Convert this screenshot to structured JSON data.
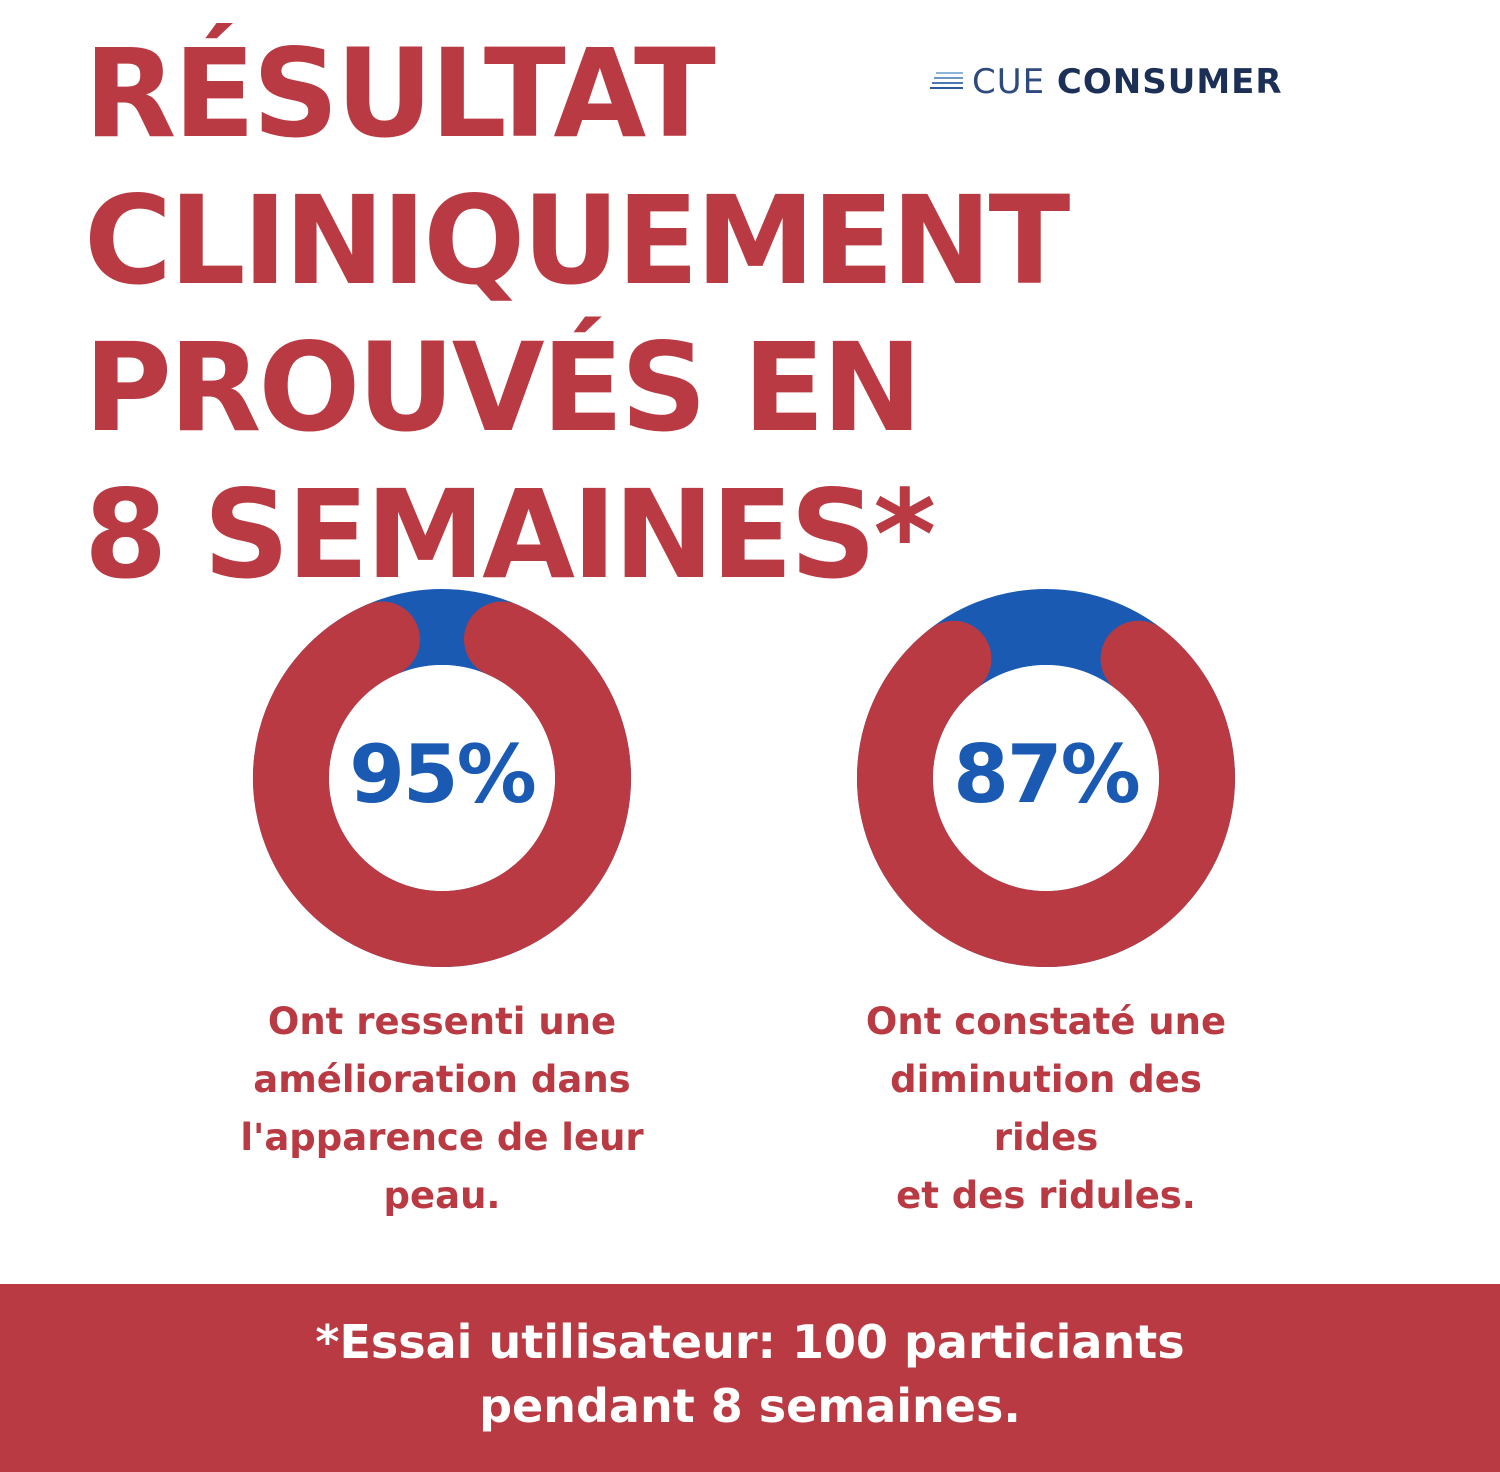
{
  "headline": {
    "lines": [
      "RÉSULTAT",
      "CLINIQUEMENT",
      "PROUVÉS EN",
      "8 SEMAINES*"
    ]
  },
  "brand": {
    "icon": "stacked-lines-icon",
    "cue": "CUE",
    "consumer": "CONSUMER"
  },
  "colors": {
    "red": "#b93a42",
    "blue": "#1a5ab3",
    "white": "#ffffff"
  },
  "chart_data": [
    {
      "type": "pie",
      "style": "donut",
      "value": 95,
      "label": "95%",
      "caption_lines": [
        "Ont ressenti une",
        "amélioration dans",
        "l'apparence de leur",
        "peau."
      ]
    },
    {
      "type": "pie",
      "style": "donut",
      "value": 87,
      "label": "87%",
      "caption_lines": [
        "Ont constaté une",
        "diminution des",
        "rides",
        "et des ridules."
      ]
    }
  ],
  "footer": {
    "lines": [
      "*Essai utilisateur: 100 particiants",
      "pendant 8 semaines."
    ]
  }
}
